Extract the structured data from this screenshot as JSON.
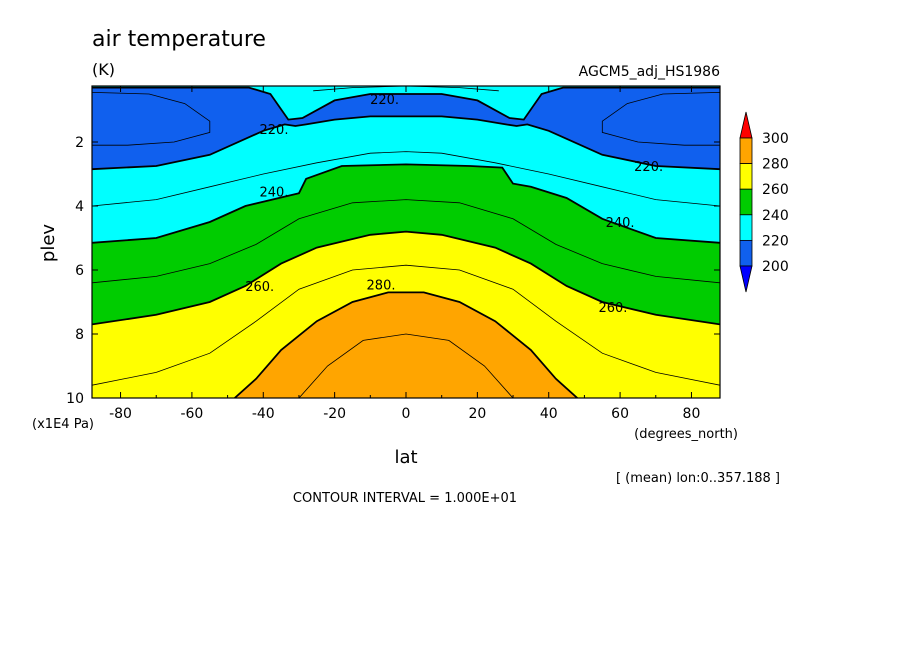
{
  "chart_data": {
    "type": "heatmap",
    "title": "air temperature",
    "units": "(K)",
    "model": "AGCM5_adj_HS1986",
    "xlabel": "lat",
    "ylabel": "plev",
    "x_units": "(degrees_north)",
    "y_units": "(x1E4 Pa)",
    "xlim": [
      -88,
      88
    ],
    "ylim": [
      10,
      0.25
    ],
    "x_ticks": [
      -80,
      -60,
      -40,
      -20,
      0,
      20,
      40,
      60,
      80
    ],
    "y_ticks": [
      2,
      4,
      6,
      8,
      10
    ],
    "x_tick_labels": [
      "-80",
      "-60",
      "-40",
      "-20",
      "0",
      "20",
      "40",
      "60",
      "80"
    ],
    "y_tick_labels": [
      "2",
      "4",
      "6",
      "8",
      "10"
    ],
    "subset_note": "[ (mean) lon:0..357.188 ]",
    "contour_interval_text": "CONTOUR INTERVAL = 1.000E+01",
    "contour_interval": 10,
    "colorbar": {
      "levels": [
        200,
        220,
        240,
        260,
        280,
        300
      ],
      "level_labels": [
        "200",
        "220",
        "240",
        "260",
        "280",
        "300"
      ],
      "colors": [
        "#0000ff",
        "#1060ee",
        "#00ffff",
        "#00cc00",
        "#ffff00",
        "#ffa500",
        "#ff0000"
      ],
      "extend": "both"
    },
    "contour_labels": [
      {
        "text": "220.",
        "lat": -6,
        "plev": 0.65
      },
      {
        "text": "220.",
        "lat": -37,
        "plev": 1.6
      },
      {
        "text": "220.",
        "lat": 68,
        "plev": 2.75
      },
      {
        "text": "240.",
        "lat": -37,
        "plev": 3.55
      },
      {
        "text": "240.",
        "lat": 60,
        "plev": 4.5
      },
      {
        "text": "260.",
        "lat": -41,
        "plev": 6.5
      },
      {
        "text": "260.",
        "lat": 58,
        "plev": 7.15
      },
      {
        "text": "280.",
        "lat": -7,
        "plev": 6.45
      }
    ],
    "boundaries": {
      "b200_top": {
        "lat": [
          -88,
          -70,
          -55,
          -44,
          -38,
          -33,
          -29,
          -20,
          -10,
          0,
          10,
          20,
          29,
          33,
          38,
          44,
          55,
          70,
          88
        ],
        "plev": [
          0.3,
          0.3,
          0.3,
          0.3,
          0.5,
          1.3,
          1.25,
          0.7,
          0.5,
          0.5,
          0.5,
          0.7,
          1.25,
          1.3,
          0.5,
          0.3,
          0.3,
          0.3,
          0.3
        ]
      },
      "b200_bot": {
        "lat": [
          -88,
          -70,
          -55,
          -45,
          -40,
          -34,
          -31,
          -28,
          -20,
          -10,
          0,
          10,
          20,
          28,
          31,
          34,
          40,
          45,
          55,
          70,
          88
        ],
        "plev": [
          2.85,
          2.75,
          2.4,
          1.9,
          1.65,
          1.45,
          1.5,
          1.45,
          1.3,
          1.2,
          1.2,
          1.2,
          1.3,
          1.45,
          1.5,
          1.45,
          1.65,
          1.9,
          2.4,
          2.75,
          2.85
        ]
      },
      "b220": {
        "lat": [
          -88,
          -70,
          -55,
          -45,
          -30,
          -28,
          -18,
          0,
          18,
          27,
          30,
          35,
          45,
          55,
          70,
          88
        ],
        "plev": [
          5.15,
          5.0,
          4.5,
          4.0,
          3.6,
          3.15,
          2.75,
          2.7,
          2.75,
          2.8,
          3.3,
          3.4,
          3.75,
          4.4,
          5.0,
          5.15
        ]
      },
      "b240": {
        "lat": [
          -88,
          -70,
          -55,
          -45,
          -35,
          -25,
          -10,
          0,
          10,
          25,
          35,
          45,
          55,
          70,
          88
        ],
        "plev": [
          7.7,
          7.4,
          7.0,
          6.5,
          5.8,
          5.3,
          4.9,
          4.8,
          4.9,
          5.3,
          5.8,
          6.5,
          7.0,
          7.4,
          7.7
        ]
      },
      "b260": {
        "lat": [
          -48,
          -42,
          -35,
          -25,
          -15,
          -5,
          0,
          5,
          15,
          25,
          35,
          42,
          48
        ],
        "plev": [
          10,
          9.4,
          8.5,
          7.6,
          7.0,
          6.7,
          6.7,
          6.7,
          7.0,
          7.6,
          8.5,
          9.4,
          10
        ]
      }
    },
    "thin_contours": [
      {
        "lat": [
          -88,
          -72,
          -62,
          -55,
          -55,
          -65,
          -78,
          -88
        ],
        "plev": [
          0.45,
          0.5,
          0.8,
          1.35,
          1.7,
          2.0,
          2.1,
          2.1
        ]
      },
      {
        "lat": [
          88,
          72,
          62,
          55,
          55,
          65,
          78,
          88
        ],
        "plev": [
          0.45,
          0.5,
          0.8,
          1.35,
          1.7,
          2.0,
          2.1,
          2.1
        ]
      },
      {
        "lat": [
          -26,
          -15,
          0,
          15,
          26
        ],
        "plev": [
          0.4,
          0.3,
          0.25,
          0.3,
          0.4
        ]
      },
      {
        "lat": [
          -88,
          -70,
          -55,
          -40,
          -25,
          -10,
          0,
          10,
          25,
          40,
          55,
          70,
          88
        ],
        "plev": [
          4.0,
          3.8,
          3.4,
          3.0,
          2.65,
          2.35,
          2.3,
          2.35,
          2.65,
          3.0,
          3.4,
          3.8,
          4.0
        ]
      },
      {
        "lat": [
          -88,
          -70,
          -55,
          -42,
          -30,
          -15,
          0,
          15,
          30,
          42,
          55,
          70,
          88
        ],
        "plev": [
          6.4,
          6.2,
          5.8,
          5.2,
          4.4,
          3.9,
          3.8,
          3.9,
          4.4,
          5.2,
          5.8,
          6.2,
          6.4
        ]
      },
      {
        "lat": [
          -88,
          -70,
          -55,
          -42,
          -30,
          -15,
          0,
          15,
          30,
          42,
          55,
          70,
          88
        ],
        "plev": [
          9.6,
          9.2,
          8.6,
          7.6,
          6.6,
          6.0,
          5.85,
          6.0,
          6.6,
          7.6,
          8.6,
          9.2,
          9.6
        ]
      },
      {
        "lat": [
          -30,
          -22,
          -12,
          0,
          12,
          22,
          30
        ],
        "plev": [
          10,
          9.0,
          8.2,
          8.0,
          8.2,
          9.0,
          10
        ]
      }
    ]
  }
}
